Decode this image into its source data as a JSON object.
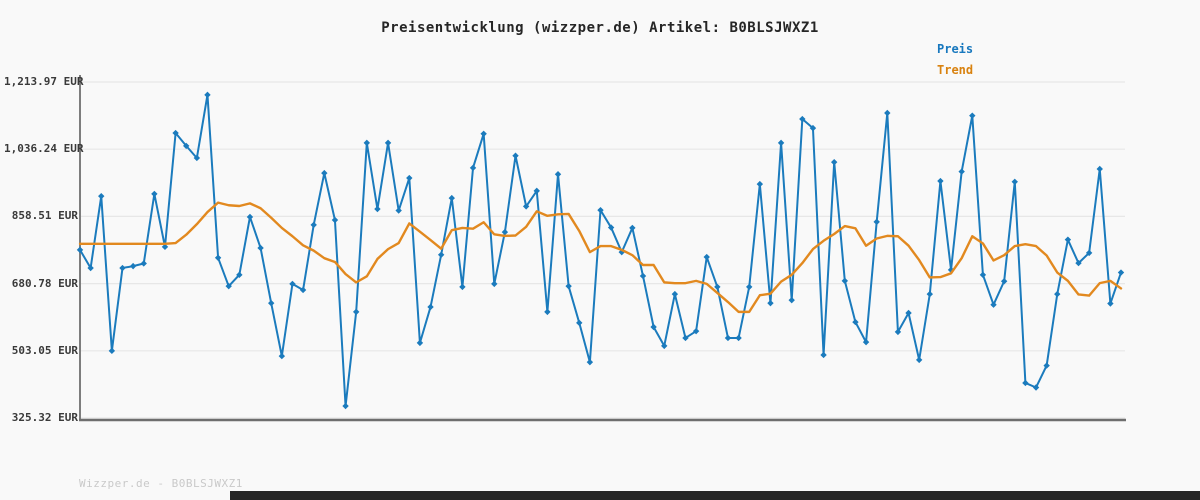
{
  "title": "Preisentwicklung (wizzper.de) Artikel: B0BLSJWXZ1",
  "watermark": "Wizzper.de - B0BLSJWXZ1",
  "legend": {
    "preis": {
      "label": "Preis",
      "color": "#1878be"
    },
    "trend": {
      "label": "Trend",
      "color": "#d9820f"
    }
  },
  "colors": {
    "background": "#f9f9f9",
    "price_line": "#1b7bbd",
    "trend_line": "#e2891f",
    "gridline": "#e7e7e7",
    "axis": "#7d7d7d",
    "tick_text": "#3a3a3a",
    "title_text": "#262626",
    "watermark_text": "#c9c9c9",
    "bottom_bar": "#262626"
  },
  "chart_data": {
    "type": "line",
    "title": "Preisentwicklung (wizzper.de) Artikel: B0BLSJWXZ1",
    "xlabel": "",
    "ylabel": "",
    "x_tick_labels": [],
    "grid": true,
    "legend_position": "top-right",
    "currency": "EUR",
    "y_ticks": [
      {
        "label": "1,213.97 EUR",
        "value": 1213.97
      },
      {
        "label": "1,036.24 EUR",
        "value": 1036.24
      },
      {
        "label": "858.51 EUR",
        "value": 858.51
      },
      {
        "label": "680.78 EUR",
        "value": 680.78
      },
      {
        "label": "503.05 EUR",
        "value": 503.05
      },
      {
        "label": "325.32 EUR",
        "value": 325.32
      }
    ],
    "ylim": [
      306,
      1233
    ],
    "series": [
      {
        "name": "Preis",
        "marker": "diamond",
        "values": [
          770,
          722,
          912,
          503,
          722,
          727,
          734,
          918,
          778,
          1079,
          1045,
          1013,
          1180,
          749,
          674,
          704,
          857,
          775,
          629,
          489,
          680,
          664,
          836,
          973,
          849,
          357,
          606,
          1053,
          878,
          1053,
          874,
          960,
          524,
          619,
          757,
          907,
          672,
          987,
          1077,
          680,
          817,
          1019,
          885,
          926,
          606,
          970,
          674,
          577,
          473,
          875,
          829,
          764,
          828,
          701,
          566,
          516,
          653,
          537,
          555,
          751,
          672,
          537,
          537,
          672,
          944,
          629,
          1053,
          637,
          1116,
          1092,
          492,
          1002,
          688,
          579,
          526,
          844,
          1132,
          553,
          603,
          479,
          653,
          952,
          717,
          977,
          1125,
          704,
          625,
          687,
          950,
          418,
          406,
          464,
          653,
          797,
          735,
          762,
          984,
          628,
          710
        ]
      },
      {
        "name": "Trend",
        "marker": "none",
        "values": [
          786,
          786,
          786,
          786,
          786,
          786,
          786,
          786,
          786,
          788,
          810,
          838,
          870,
          895,
          888,
          886,
          893,
          880,
          855,
          828,
          806,
          782,
          768,
          748,
          738,
          706,
          684,
          700,
          746,
          772,
          788,
          840,
          818,
          796,
          773,
          822,
          828,
          826,
          843,
          811,
          807,
          808,
          831,
          872,
          860,
          864,
          865,
          820,
          764,
          780,
          780,
          770,
          756,
          730,
          730,
          684,
          682,
          682,
          688,
          680,
          656,
          632,
          606,
          606,
          650,
          654,
          686,
          704,
          735,
          772,
          794,
          812,
          833,
          827,
          781,
          800,
          807,
          806,
          781,
          743,
          697,
          698,
          708,
          748,
          806,
          787,
          742,
          756,
          780,
          785,
          780,
          755,
          710,
          688,
          652,
          649,
          682,
          688,
          668
        ]
      }
    ]
  }
}
